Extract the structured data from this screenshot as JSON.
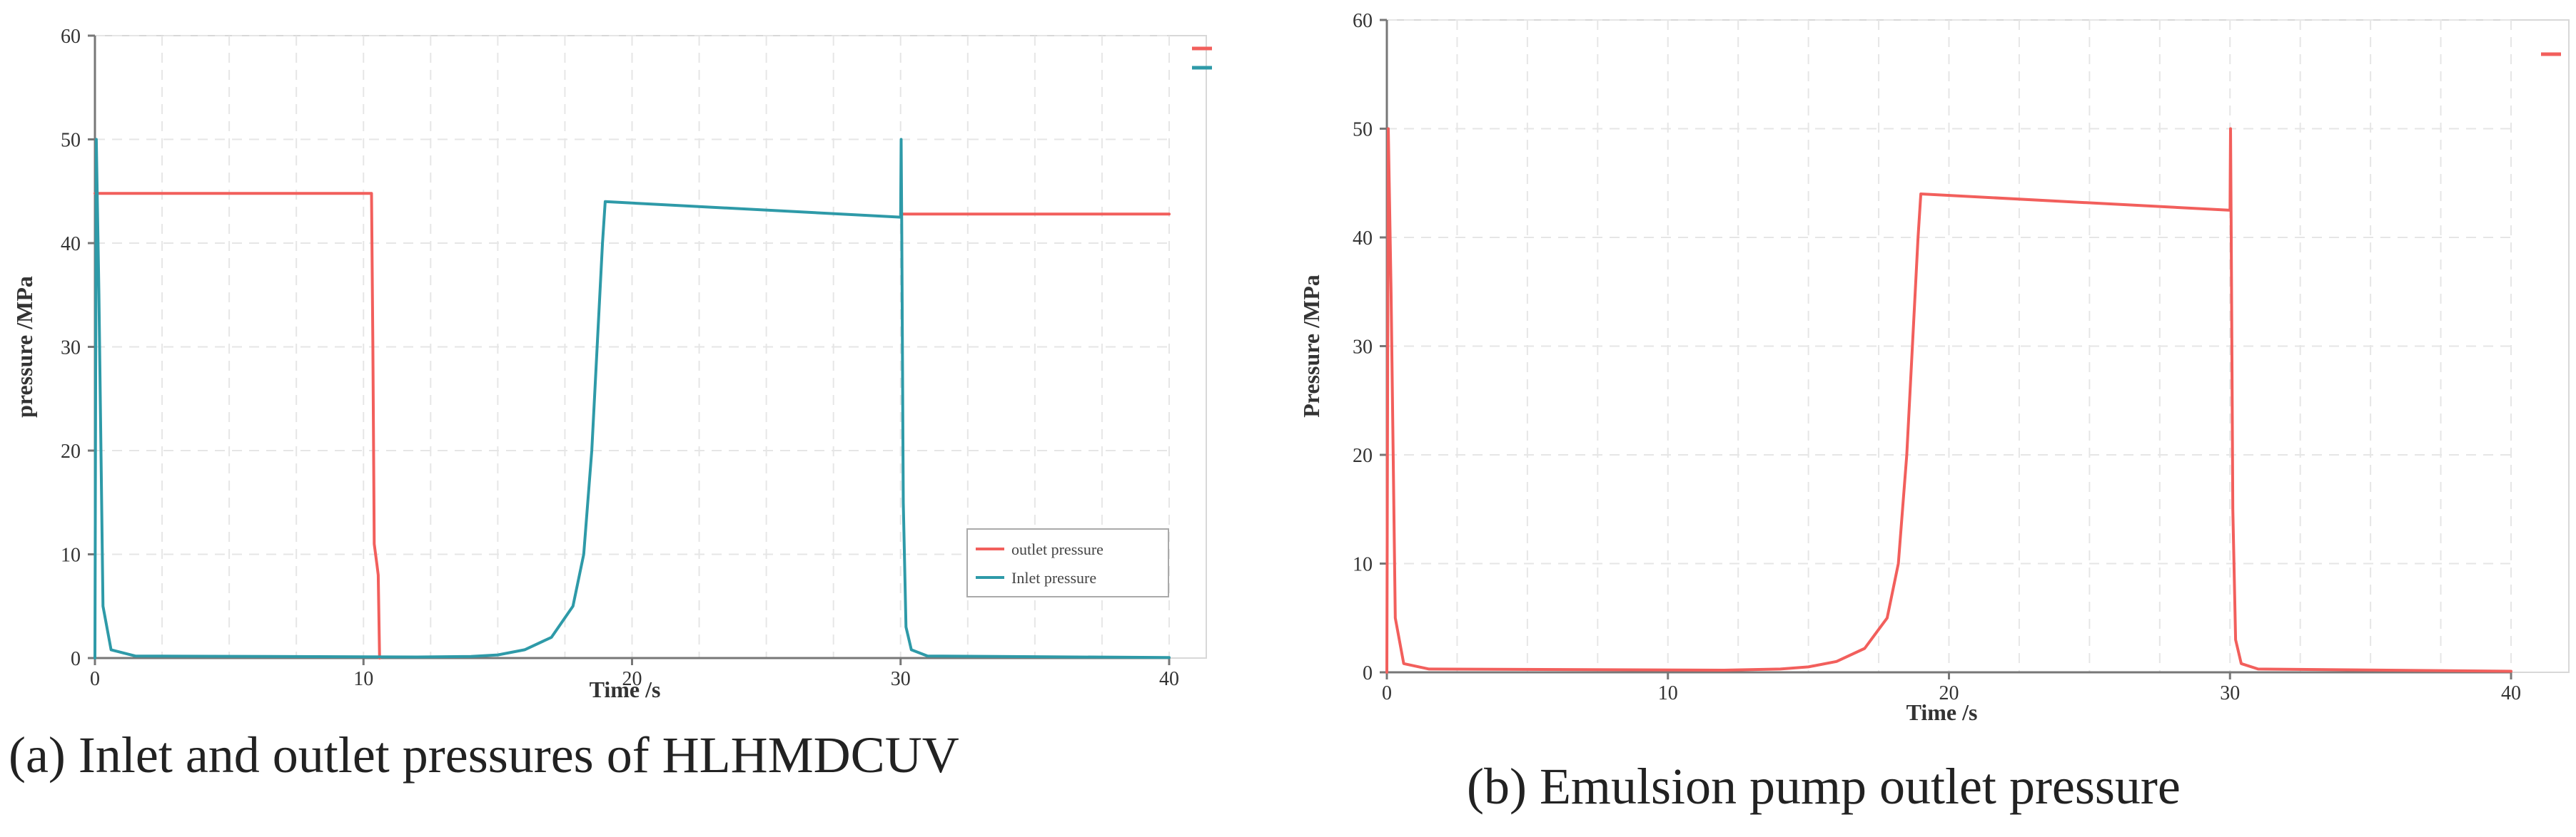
{
  "chart_data": [
    {
      "type": "line",
      "caption": "(a) Inlet and outlet pressures of HLHMDCUV",
      "xlabel": "Time /s",
      "ylabel": "pressure /MPa",
      "xlim": [
        0,
        40
      ],
      "ylim": [
        0,
        60
      ],
      "xticks": [
        0,
        10,
        20,
        30,
        40
      ],
      "yticks": [
        0,
        10,
        20,
        30,
        40,
        50,
        60
      ],
      "grid": true,
      "legend_position": "lower-right",
      "series": [
        {
          "name": "outlet pressure",
          "color": "#f25f5c",
          "segments": [
            [
              [
                0,
                44.8
              ],
              [
                10.3,
                44.8
              ],
              [
                10.35,
                30
              ],
              [
                10.4,
                11
              ],
              [
                10.5,
                9
              ],
              [
                10.55,
                8
              ],
              [
                10.6,
                0
              ]
            ],
            [
              [
                30,
                42.8
              ],
              [
                40,
                42.8
              ]
            ]
          ]
        },
        {
          "name": "Inlet pressure",
          "color": "#2e9aa8",
          "segments": [
            [
              [
                0,
                0
              ],
              [
                0.05,
                50
              ],
              [
                0.15,
                35
              ],
              [
                0.3,
                5
              ],
              [
                0.6,
                0.8
              ],
              [
                1.5,
                0.2
              ],
              [
                12,
                0.1
              ],
              [
                14,
                0.15
              ],
              [
                15,
                0.3
              ],
              [
                16,
                0.8
              ],
              [
                17,
                2
              ],
              [
                17.8,
                5
              ],
              [
                18.2,
                10
              ],
              [
                18.5,
                20
              ],
              [
                18.7,
                30
              ],
              [
                18.9,
                40
              ],
              [
                19,
                44
              ],
              [
                30,
                42.5
              ],
              [
                30.02,
                50
              ],
              [
                30.04,
                42
              ],
              [
                30.1,
                15
              ],
              [
                30.2,
                3
              ],
              [
                30.4,
                0.8
              ],
              [
                31,
                0.2
              ],
              [
                40,
                0.05
              ]
            ]
          ]
        }
      ]
    },
    {
      "type": "line",
      "caption": "(b) Emulsion pump outlet pressure",
      "xlabel": "Time /s",
      "ylabel": "Pressure /MPa",
      "xlim": [
        0,
        40
      ],
      "ylim": [
        0,
        60
      ],
      "xticks": [
        0,
        10,
        20,
        30,
        40
      ],
      "yticks": [
        0,
        10,
        20,
        30,
        40,
        50,
        60
      ],
      "grid": true,
      "series": [
        {
          "name": "",
          "color": "#f25f5c",
          "segments": [
            [
              [
                0,
                0
              ],
              [
                0.05,
                50
              ],
              [
                0.15,
                35
              ],
              [
                0.3,
                5
              ],
              [
                0.6,
                0.8
              ],
              [
                1.5,
                0.3
              ],
              [
                12,
                0.2
              ],
              [
                14,
                0.3
              ],
              [
                15,
                0.5
              ],
              [
                16,
                1
              ],
              [
                17,
                2.2
              ],
              [
                17.8,
                5
              ],
              [
                18.2,
                10
              ],
              [
                18.5,
                20
              ],
              [
                18.7,
                30
              ],
              [
                18.9,
                40
              ],
              [
                19,
                44
              ],
              [
                30,
                42.5
              ],
              [
                30.02,
                50
              ],
              [
                30.04,
                42
              ],
              [
                30.1,
                15
              ],
              [
                30.2,
                3
              ],
              [
                30.4,
                0.8
              ],
              [
                31,
                0.3
              ],
              [
                40,
                0.1
              ]
            ]
          ]
        }
      ]
    }
  ]
}
